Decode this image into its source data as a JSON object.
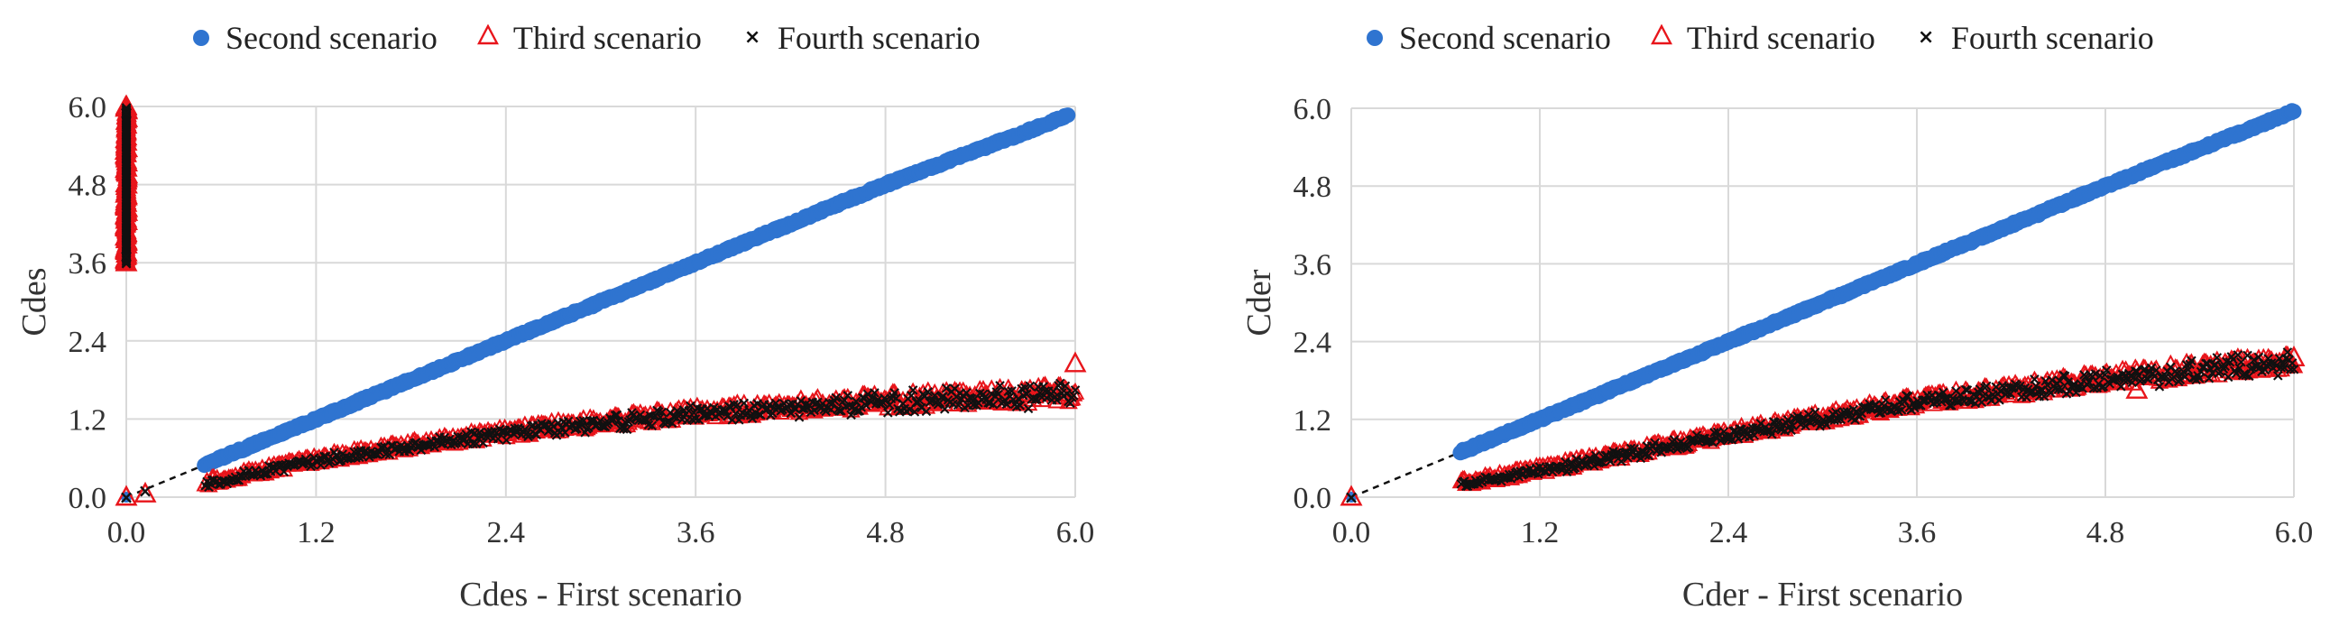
{
  "chart_data": [
    {
      "type": "scatter",
      "xlabel": "Cdes - First scenario",
      "ylabel": "Cdes",
      "xlim": [
        0.0,
        6.0
      ],
      "ylim": [
        0.0,
        6.0
      ],
      "xticks": [
        "0.0",
        "1.2",
        "2.4",
        "3.6",
        "4.8",
        "6.0"
      ],
      "yticks": [
        "0.0",
        "1.2",
        "2.4",
        "3.6",
        "4.8",
        "6.0"
      ],
      "grid": true,
      "legend_position": "top",
      "series": [
        {
          "name": "Second scenario",
          "marker": "circle",
          "color": "#2f74d0",
          "x": [
            0.0,
            0.5,
            1.2,
            2.4,
            3.6,
            4.8,
            5.95
          ],
          "y": [
            0.0,
            0.5,
            1.2,
            2.4,
            3.6,
            4.8,
            5.85
          ]
        },
        {
          "name": "Third scenario",
          "marker": "triangle",
          "color": "#e8151b",
          "x": [
            0.0,
            0.0,
            0.0,
            0.12,
            0.5,
            1.2,
            2.4,
            3.6,
            4.8,
            6.0,
            6.0
          ],
          "y": [
            0.0,
            3.6,
            6.0,
            0.05,
            0.25,
            0.6,
            1.05,
            1.35,
            1.5,
            1.65,
            2.05
          ]
        },
        {
          "name": "Fourth scenario",
          "marker": "x",
          "color": "#111111",
          "x": [
            0.0,
            0.0,
            0.0,
            0.12,
            0.5,
            1.2,
            2.4,
            3.6,
            4.8,
            6.0
          ],
          "y": [
            0.0,
            3.7,
            5.9,
            0.1,
            0.22,
            0.58,
            1.0,
            1.3,
            1.48,
            1.6
          ]
        }
      ]
    },
    {
      "type": "scatter",
      "xlabel": "Cder - First scenario",
      "ylabel": "Cder",
      "xlim": [
        0.0,
        6.0
      ],
      "ylim": [
        0.0,
        6.0
      ],
      "xticks": [
        "0.0",
        "1.2",
        "2.4",
        "3.6",
        "4.8",
        "6.0"
      ],
      "yticks": [
        "0.0",
        "1.2",
        "2.4",
        "3.6",
        "4.8",
        "6.0"
      ],
      "grid": true,
      "legend_position": "top",
      "series": [
        {
          "name": "Second scenario",
          "marker": "circle",
          "color": "#2f74d0",
          "x": [
            0.0,
            0.7,
            1.2,
            2.4,
            3.6,
            4.8,
            6.0
          ],
          "y": [
            0.0,
            0.7,
            1.2,
            2.4,
            3.6,
            4.8,
            5.95
          ]
        },
        {
          "name": "Third scenario",
          "marker": "triangle",
          "color": "#e8151b",
          "x": [
            0.0,
            0.7,
            0.9,
            1.2,
            2.4,
            3.6,
            4.8,
            5.0,
            6.0
          ],
          "y": [
            0.0,
            0.25,
            0.3,
            0.42,
            1.0,
            1.5,
            1.85,
            1.65,
            2.15
          ]
        },
        {
          "name": "Fourth scenario",
          "marker": "x",
          "color": "#111111",
          "x": [
            0.0,
            0.7,
            1.2,
            2.4,
            3.6,
            4.8,
            6.0
          ],
          "y": [
            0.0,
            0.22,
            0.42,
            0.98,
            1.48,
            1.82,
            2.12
          ]
        }
      ]
    }
  ]
}
